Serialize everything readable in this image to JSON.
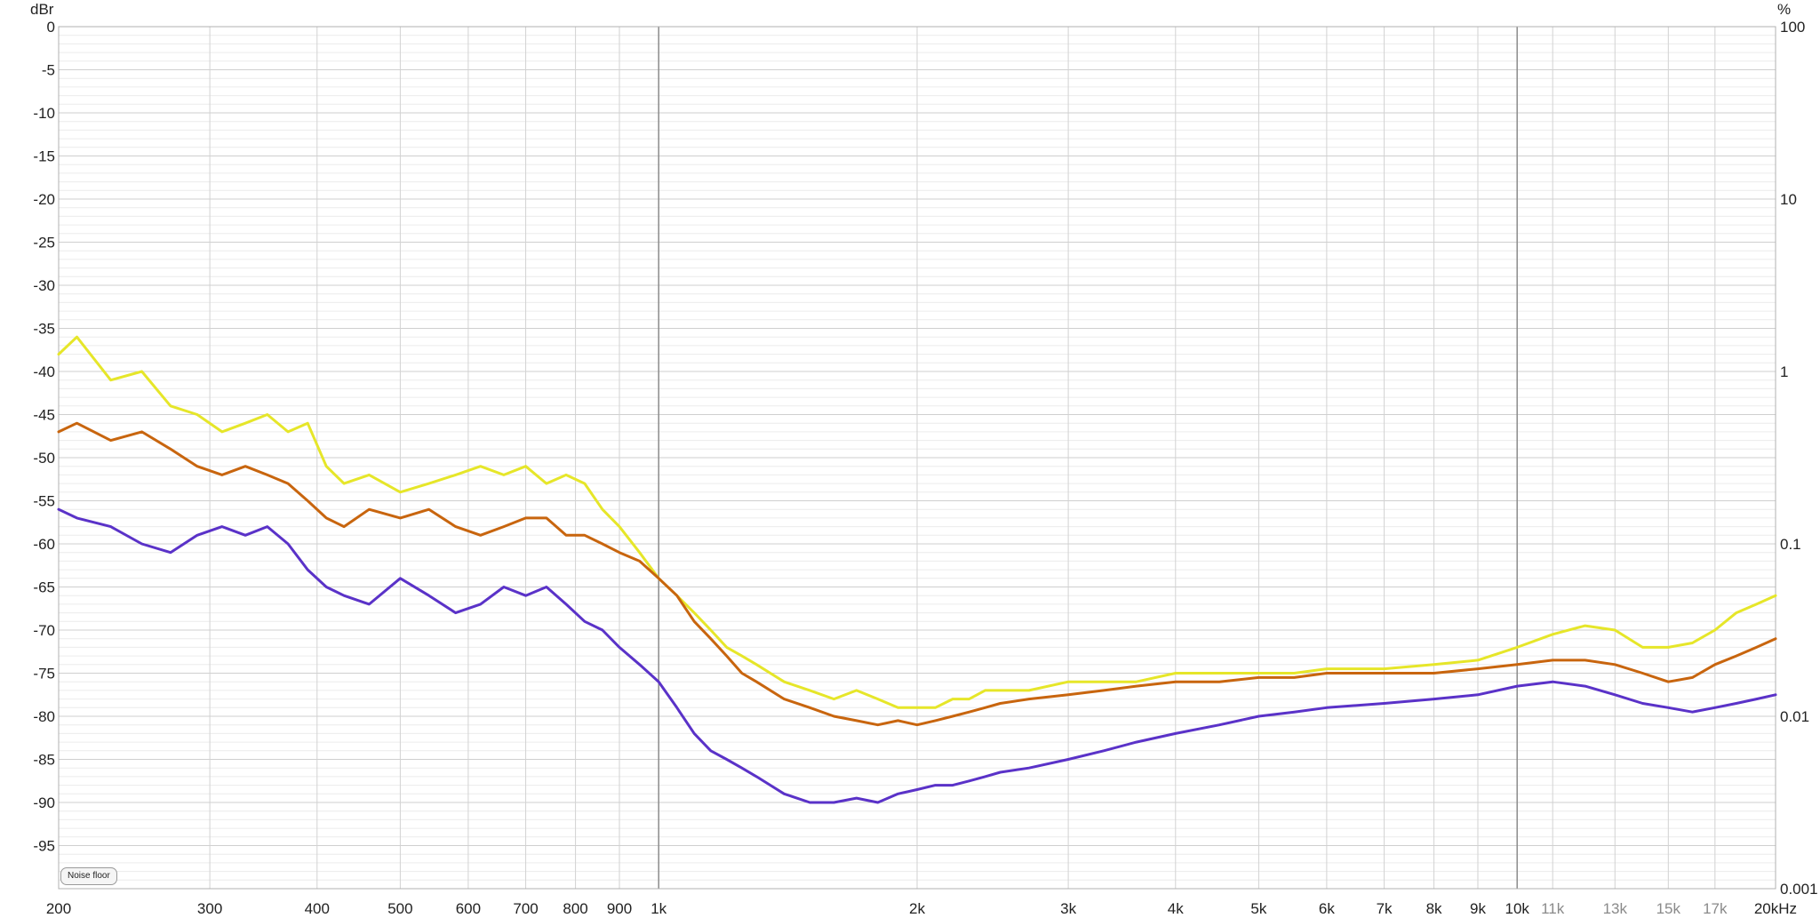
{
  "y_unit_left": "dBr",
  "y_unit_right": "%",
  "noise_floor_button": "Noise floor",
  "chart_data": {
    "type": "line",
    "x_scale": "log",
    "xlim": [
      200,
      20000
    ],
    "ylim": [
      -100,
      0
    ],
    "y_ticks": [
      0,
      -5,
      -10,
      -15,
      -20,
      -25,
      -30,
      -35,
      -40,
      -45,
      -50,
      -55,
      -60,
      -65,
      -70,
      -75,
      -80,
      -85,
      -90,
      -95
    ],
    "y_right_ticks": [
      {
        "label": "100",
        "dbr": 0
      },
      {
        "label": "10",
        "dbr": -20
      },
      {
        "label": "1",
        "dbr": -40
      },
      {
        "label": "0.1",
        "dbr": -60
      },
      {
        "label": "0.01",
        "dbr": -80
      },
      {
        "label": "0.001",
        "dbr": -100
      }
    ],
    "x_ticks": [
      {
        "label": "200",
        "f": 200,
        "minor": false
      },
      {
        "label": "300",
        "f": 300,
        "minor": false
      },
      {
        "label": "400",
        "f": 400,
        "minor": false
      },
      {
        "label": "500",
        "f": 500,
        "minor": false
      },
      {
        "label": "600",
        "f": 600,
        "minor": false
      },
      {
        "label": "700",
        "f": 700,
        "minor": false
      },
      {
        "label": "800",
        "f": 800,
        "minor": false
      },
      {
        "label": "900",
        "f": 900,
        "minor": false
      },
      {
        "label": "1k",
        "f": 1000,
        "minor": false
      },
      {
        "label": "2k",
        "f": 2000,
        "minor": false
      },
      {
        "label": "3k",
        "f": 3000,
        "minor": false
      },
      {
        "label": "4k",
        "f": 4000,
        "minor": false
      },
      {
        "label": "5k",
        "f": 5000,
        "minor": false
      },
      {
        "label": "6k",
        "f": 6000,
        "minor": false
      },
      {
        "label": "7k",
        "f": 7000,
        "minor": false
      },
      {
        "label": "8k",
        "f": 8000,
        "minor": false
      },
      {
        "label": "9k",
        "f": 9000,
        "minor": false
      },
      {
        "label": "10k",
        "f": 10000,
        "minor": false
      },
      {
        "label": "11k",
        "f": 11000,
        "minor": true
      },
      {
        "label": "13k",
        "f": 13000,
        "minor": true
      },
      {
        "label": "15k",
        "f": 15000,
        "minor": true
      },
      {
        "label": "17k",
        "f": 17000,
        "minor": true
      },
      {
        "label": "20kHz",
        "f": 20000,
        "minor": false
      }
    ],
    "grid": true,
    "series": [
      {
        "color": "#e6e629",
        "x": [
          200,
          210,
          230,
          250,
          270,
          290,
          310,
          330,
          350,
          370,
          390,
          410,
          430,
          460,
          500,
          540,
          580,
          620,
          660,
          700,
          740,
          780,
          820,
          860,
          900,
          950,
          1000,
          1050,
          1100,
          1150,
          1200,
          1250,
          1300,
          1400,
          1500,
          1600,
          1700,
          1800,
          1900,
          2000,
          2100,
          2200,
          2300,
          2400,
          2500,
          2700,
          3000,
          3300,
          3600,
          4000,
          4500,
          5000,
          5500,
          6000,
          7000,
          8000,
          9000,
          10000,
          11000,
          12000,
          13000,
          14000,
          15000,
          16000,
          17000,
          18000,
          19000,
          20000
        ],
        "y": [
          -38,
          -36,
          -41,
          -40,
          -44,
          -45,
          -47,
          -46,
          -45,
          -47,
          -46,
          -51,
          -53,
          -52,
          -54,
          -53,
          -52,
          -51,
          -52,
          -51,
          -53,
          -52,
          -53,
          -56,
          -58,
          -61,
          -64,
          -66,
          -68,
          -70,
          -72,
          -73,
          -74,
          -76,
          -77,
          -78,
          -77,
          -78,
          -79,
          -79,
          -79,
          -78,
          -78,
          -77,
          -77,
          -77,
          -76,
          -76,
          -76,
          -75,
          -75,
          -75,
          -75,
          -74.5,
          -74.5,
          -74,
          -73.5,
          -72,
          -70.5,
          -69.5,
          -70,
          -72,
          -72,
          -71.5,
          -70,
          -68,
          -67,
          -66
        ]
      },
      {
        "color": "#c8650e",
        "x": [
          200,
          210,
          230,
          250,
          270,
          290,
          310,
          330,
          350,
          370,
          390,
          410,
          430,
          460,
          500,
          540,
          580,
          620,
          660,
          700,
          740,
          780,
          820,
          860,
          900,
          950,
          1000,
          1050,
          1100,
          1150,
          1200,
          1250,
          1300,
          1400,
          1500,
          1600,
          1700,
          1800,
          1900,
          2000,
          2100,
          2200,
          2300,
          2400,
          2500,
          2700,
          3000,
          3300,
          3600,
          4000,
          4500,
          5000,
          5500,
          6000,
          7000,
          8000,
          9000,
          10000,
          11000,
          12000,
          13000,
          14000,
          15000,
          16000,
          17000,
          18000,
          19000,
          20000
        ],
        "y": [
          -47,
          -46,
          -48,
          -47,
          -49,
          -51,
          -52,
          -51,
          -52,
          -53,
          -55,
          -57,
          -58,
          -56,
          -57,
          -56,
          -58,
          -59,
          -58,
          -57,
          -57,
          -59,
          -59,
          -60,
          -61,
          -62,
          -64,
          -66,
          -69,
          -71,
          -73,
          -75,
          -76,
          -78,
          -79,
          -80,
          -80.5,
          -81,
          -80.5,
          -81,
          -80.5,
          -80,
          -79.5,
          -79,
          -78.5,
          -78,
          -77.5,
          -77,
          -76.5,
          -76,
          -76,
          -75.5,
          -75.5,
          -75,
          -75,
          -75,
          -74.5,
          -74,
          -73.5,
          -73.5,
          -74,
          -75,
          -76,
          -75.5,
          -74,
          -73,
          -72,
          -71
        ]
      },
      {
        "color": "#5a32c8",
        "x": [
          200,
          210,
          230,
          250,
          270,
          290,
          310,
          330,
          350,
          370,
          390,
          410,
          430,
          460,
          500,
          540,
          580,
          620,
          660,
          700,
          740,
          780,
          820,
          860,
          900,
          950,
          1000,
          1050,
          1100,
          1150,
          1200,
          1250,
          1300,
          1400,
          1500,
          1600,
          1700,
          1800,
          1900,
          2000,
          2100,
          2200,
          2300,
          2400,
          2500,
          2700,
          3000,
          3300,
          3600,
          4000,
          4500,
          5000,
          5500,
          6000,
          7000,
          8000,
          9000,
          10000,
          11000,
          12000,
          13000,
          14000,
          15000,
          16000,
          17000,
          18000,
          19000,
          20000
        ],
        "y": [
          -56,
          -57,
          -58,
          -60,
          -61,
          -59,
          -58,
          -59,
          -58,
          -60,
          -63,
          -65,
          -66,
          -67,
          -64,
          -66,
          -68,
          -67,
          -65,
          -66,
          -65,
          -67,
          -69,
          -70,
          -72,
          -74,
          -76,
          -79,
          -82,
          -84,
          -85,
          -86,
          -87,
          -89,
          -90,
          -90,
          -89.5,
          -90,
          -89,
          -88.5,
          -88,
          -88,
          -87.5,
          -87,
          -86.5,
          -86,
          -85,
          -84,
          -83,
          -82,
          -81,
          -80,
          -79.5,
          -79,
          -78.5,
          -78,
          -77.5,
          -76.5,
          -76,
          -76.5,
          -77.5,
          -78.5,
          -79,
          -79.5,
          -79,
          -78.5,
          -78,
          -77.5
        ]
      }
    ]
  }
}
